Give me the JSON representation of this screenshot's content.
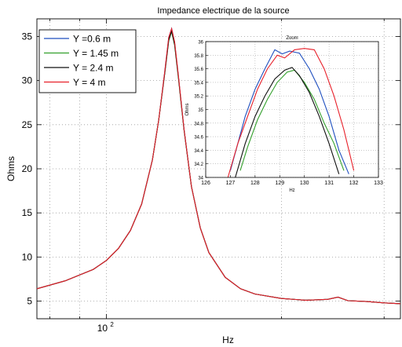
{
  "chart_data": [
    {
      "type": "line",
      "title": "Impedance electrique de la source",
      "xlabel": "Hz",
      "ylabel": "Ohms",
      "xscale": "log",
      "xlim": [
        76,
        320
      ],
      "ylim": [
        3,
        37
      ],
      "grid": true,
      "legend_position": "top-left",
      "x_ticks": [
        {
          "value": 100,
          "label": "10",
          "exp": "2"
        }
      ],
      "y_ticks": [
        5,
        10,
        15,
        20,
        25,
        30,
        35
      ],
      "x": [
        76,
        85,
        95,
        100,
        105,
        110,
        115,
        120,
        123,
        126,
        128,
        129.5,
        131,
        133,
        136,
        140,
        145,
        150,
        160,
        170,
        180,
        200,
        220,
        240,
        250,
        260,
        280,
        300,
        320
      ],
      "series": [
        {
          "name": "Y =0.6 m",
          "color": "#1f4fbf",
          "values": [
            6.4,
            7.3,
            8.6,
            9.6,
            11.0,
            13.0,
            16.0,
            21.0,
            25.5,
            31.0,
            34.9,
            35.9,
            34.3,
            30.5,
            24.5,
            18.0,
            13.3,
            10.5,
            7.7,
            6.4,
            5.8,
            5.3,
            5.1,
            5.2,
            5.45,
            5.05,
            4.95,
            4.8,
            4.7
          ]
        },
        {
          "name": "Y = 1.45 m",
          "color": "#33a02c",
          "values": [
            6.4,
            7.3,
            8.6,
            9.6,
            11.0,
            13.0,
            16.0,
            21.0,
            25.5,
            30.8,
            34.5,
            35.55,
            34.0,
            30.3,
            24.4,
            18.0,
            13.3,
            10.5,
            7.7,
            6.4,
            5.8,
            5.3,
            5.1,
            5.2,
            5.45,
            5.05,
            4.95,
            4.8,
            4.7
          ]
        },
        {
          "name": "Y = 2.4 m",
          "color": "#111111",
          "values": [
            6.4,
            7.3,
            8.6,
            9.6,
            11.0,
            13.0,
            16.0,
            21.0,
            25.5,
            30.8,
            34.6,
            35.6,
            34.1,
            30.4,
            24.4,
            18.0,
            13.3,
            10.5,
            7.7,
            6.4,
            5.8,
            5.3,
            5.1,
            5.2,
            5.45,
            5.05,
            4.95,
            4.8,
            4.7
          ]
        },
        {
          "name": "Y = 4 m",
          "color": "#e8202a",
          "values": [
            6.4,
            7.3,
            8.6,
            9.6,
            11.0,
            13.0,
            16.0,
            21.0,
            25.5,
            31.0,
            34.9,
            35.9,
            34.4,
            30.6,
            24.5,
            18.0,
            13.3,
            10.5,
            7.7,
            6.4,
            5.8,
            5.3,
            5.1,
            5.2,
            5.45,
            5.05,
            4.95,
            4.8,
            4.7
          ]
        }
      ]
    },
    {
      "type": "line",
      "title": "Zoom",
      "xlabel": "Hz",
      "ylabel": "Ohms",
      "xlim": [
        126,
        133
      ],
      "ylim": [
        34,
        36
      ],
      "grid": true,
      "x_ticks": [
        126,
        127,
        128,
        129,
        130,
        131,
        132,
        133
      ],
      "y_ticks": [
        {
          "value": 34,
          "label": "34"
        },
        {
          "value": 34.2,
          "label": "34.2"
        },
        {
          "value": 34.4,
          "label": "34.4"
        },
        {
          "value": 34.6,
          "label": "34.6"
        },
        {
          "value": 34.8,
          "label": "34.8"
        },
        {
          "value": 35,
          "label": "35"
        },
        {
          "value": 35.2,
          "label": "35.2"
        },
        {
          "value": 35.4,
          "label": "35.4"
        },
        {
          "value": 35.6,
          "label": "35.6"
        },
        {
          "value": 35.8,
          "label": "35.8"
        },
        {
          "value": 36,
          "label": "36"
        }
      ],
      "series": [
        {
          "name": "Y =0.6 m",
          "color": "#1f4fbf",
          "x": [
            127,
            127.3,
            127.6,
            128,
            128.4,
            128.8,
            129.1,
            129.4,
            129.8,
            130.2,
            130.6,
            131.0,
            131.4,
            131.8
          ],
          "values": [
            34.1,
            34.5,
            34.9,
            35.3,
            35.6,
            35.88,
            35.82,
            35.86,
            35.83,
            35.6,
            35.3,
            34.9,
            34.4,
            34.05
          ]
        },
        {
          "name": "Y = 1.45 m",
          "color": "#33a02c",
          "x": [
            127.4,
            127.7,
            128.1,
            128.5,
            128.9,
            129.3,
            129.6,
            130.0,
            130.4,
            130.8,
            131.2,
            131.6
          ],
          "values": [
            34.1,
            34.45,
            34.85,
            35.15,
            35.4,
            35.55,
            35.58,
            35.4,
            35.15,
            34.8,
            34.5,
            34.1
          ]
        },
        {
          "name": "Y = 2.4 m",
          "color": "#111111",
          "x": [
            127.2,
            127.6,
            128.0,
            128.4,
            128.8,
            129.2,
            129.5,
            129.8,
            130.2,
            130.6,
            131.0,
            131.4
          ],
          "values": [
            34.0,
            34.5,
            34.9,
            35.2,
            35.45,
            35.58,
            35.62,
            35.5,
            35.25,
            34.9,
            34.5,
            34.05
          ]
        },
        {
          "name": "Y = 4 m",
          "color": "#e8202a",
          "x": [
            126.9,
            127.3,
            127.7,
            128.1,
            128.5,
            128.9,
            129.2,
            129.6,
            130.0,
            130.4,
            130.8,
            131.2,
            131.6,
            132.0
          ],
          "values": [
            34.0,
            34.5,
            34.9,
            35.3,
            35.6,
            35.8,
            35.76,
            35.88,
            35.9,
            35.88,
            35.6,
            35.2,
            34.7,
            34.1
          ]
        }
      ]
    }
  ]
}
